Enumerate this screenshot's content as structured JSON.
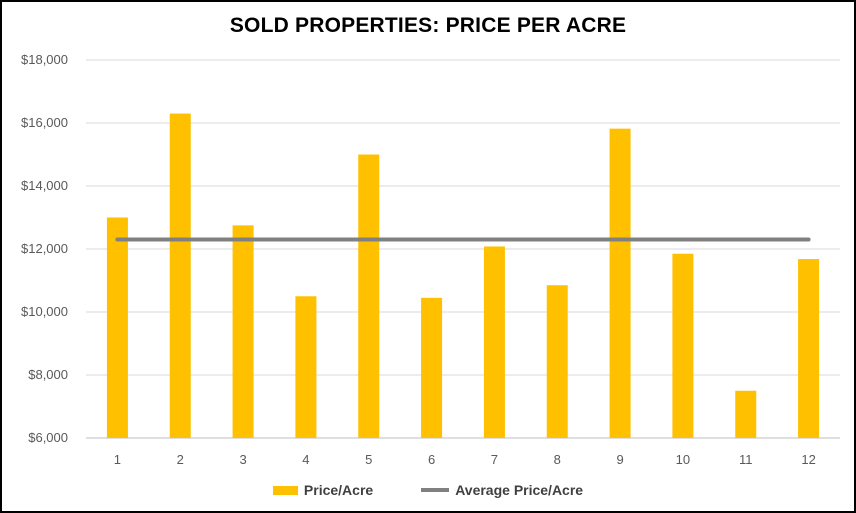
{
  "chart_data": {
    "type": "bar",
    "title": "SOLD PROPERTIES: PRICE PER ACRE",
    "xlabel": "",
    "ylabel": "",
    "ylim": [
      6000,
      18000
    ],
    "yticks": [
      6000,
      8000,
      10000,
      12000,
      14000,
      16000,
      18000
    ],
    "ytick_labels": [
      "$6,000",
      "$8,000",
      "$10,000",
      "$12,000",
      "$14,000",
      "$16,000",
      "$18,000"
    ],
    "categories": [
      "1",
      "2",
      "3",
      "4",
      "5",
      "6",
      "7",
      "8",
      "9",
      "10",
      "11",
      "12"
    ],
    "series": [
      {
        "name": "Price/Acre",
        "type": "bar",
        "color": "#FFC000",
        "values": [
          13000,
          16300,
          12750,
          10500,
          15000,
          10450,
          12080,
          10850,
          15820,
          11850,
          7500,
          11680
        ]
      },
      {
        "name": "Average Price/Acre",
        "type": "line",
        "color": "#808080",
        "values": [
          12300,
          12300,
          12300,
          12300,
          12300,
          12300,
          12300,
          12300,
          12300,
          12300,
          12300,
          12300
        ]
      }
    ],
    "grid": true,
    "legend_position": "bottom"
  }
}
